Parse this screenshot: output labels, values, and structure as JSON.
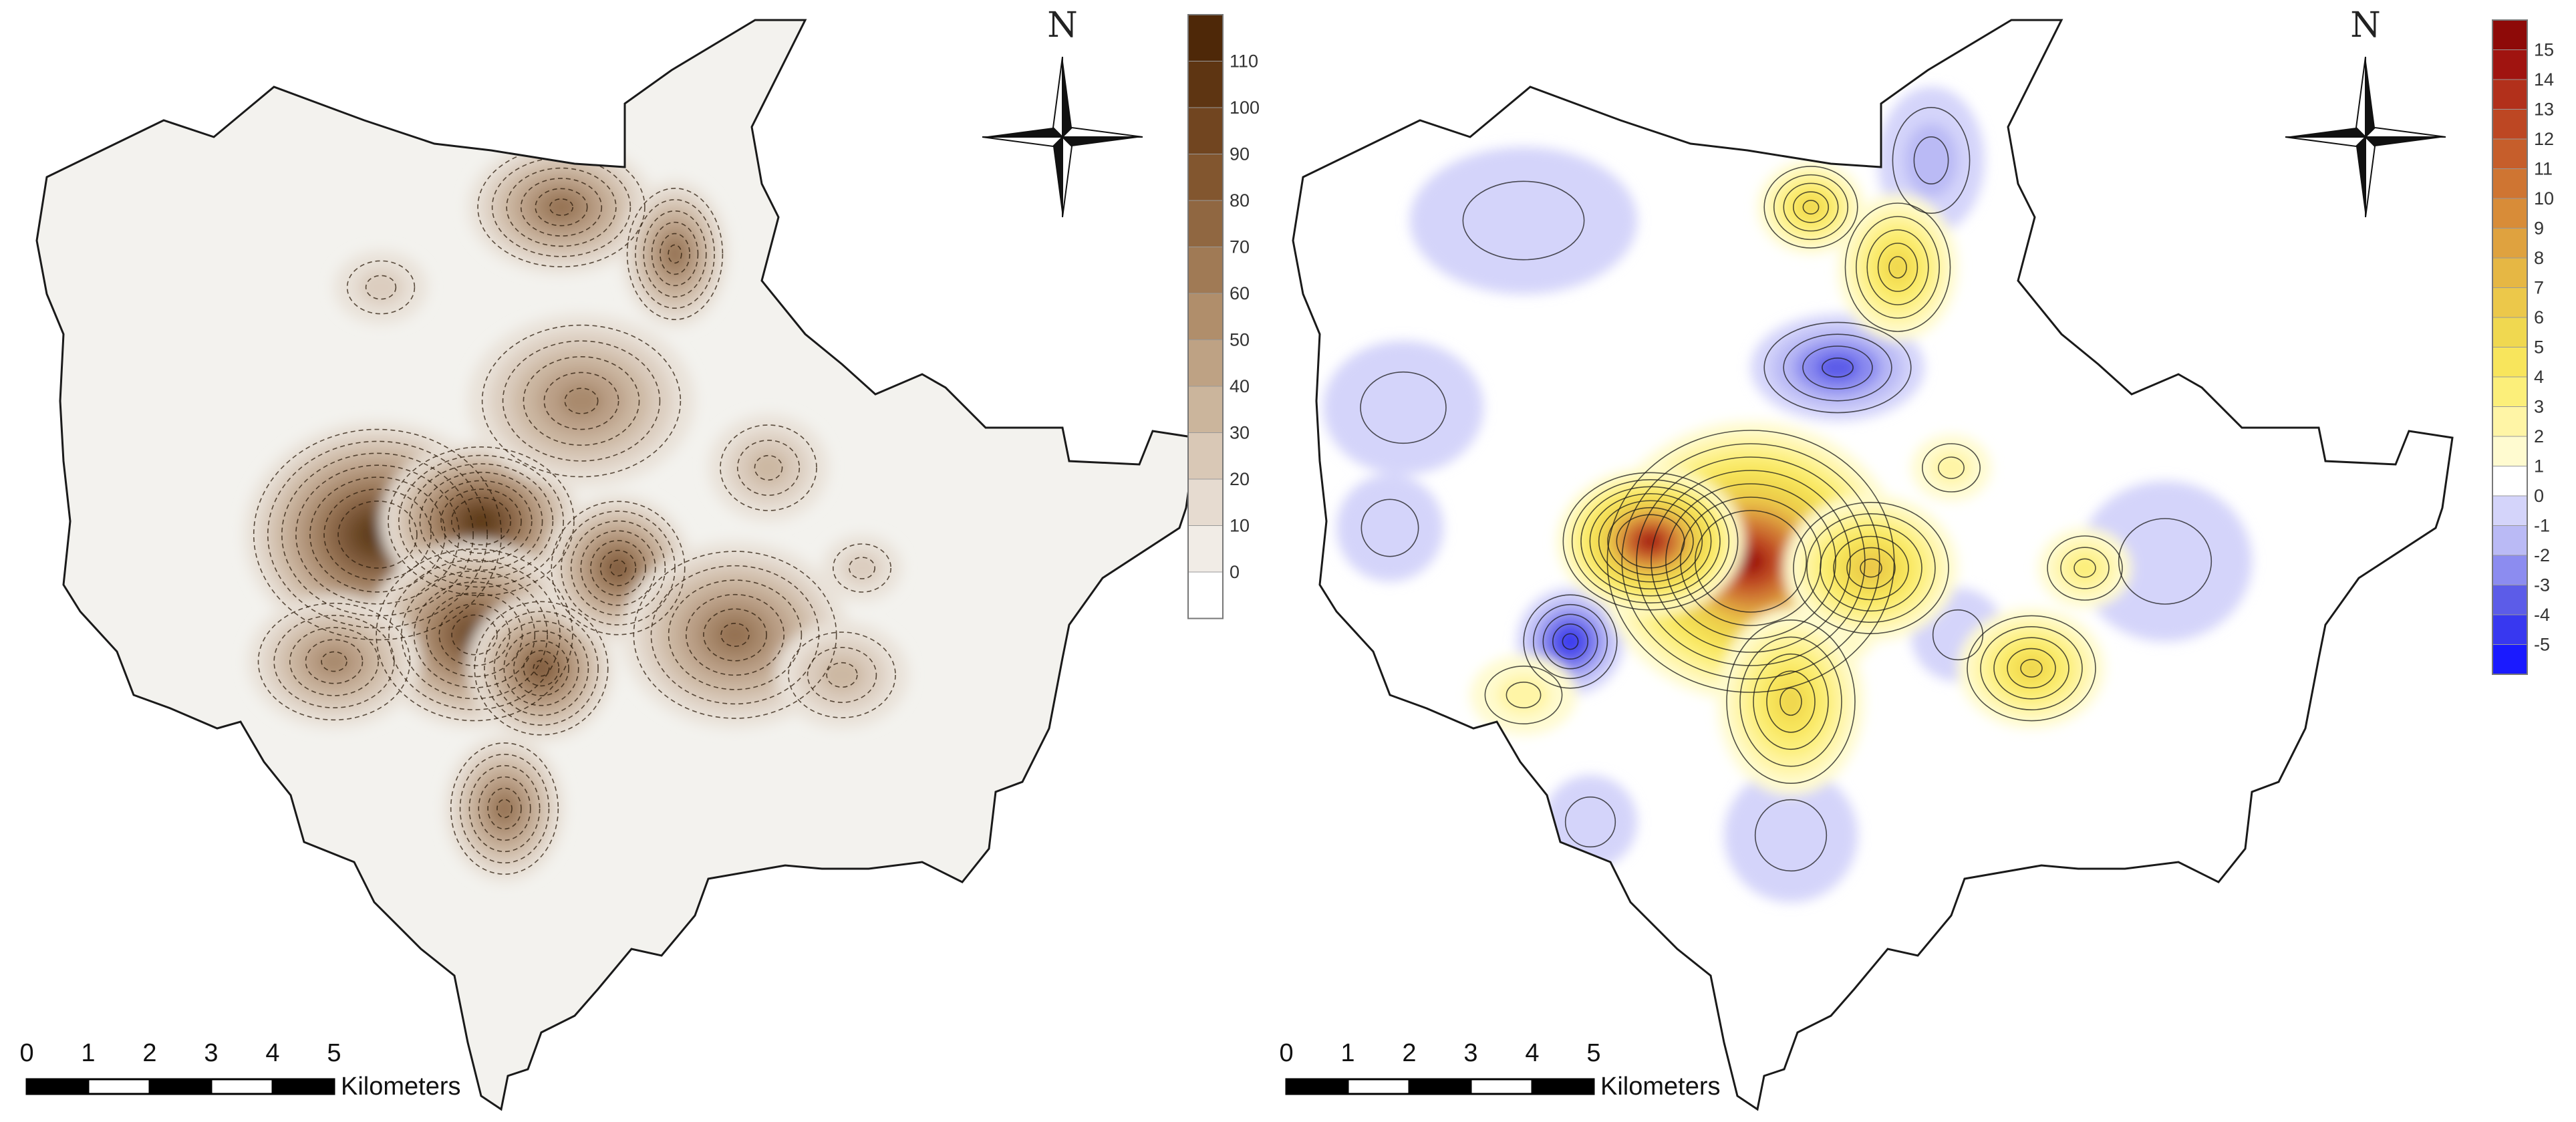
{
  "maps": [
    {
      "legend": {
        "labels": [
          "0",
          "10",
          "20",
          "30",
          "40",
          "50",
          "60",
          "70",
          "80",
          "90",
          "100",
          "110"
        ],
        "colors": [
          "#ffffff",
          "#f1ece6",
          "#e6dbd0",
          "#d9c8b6",
          "#cbb59c",
          "#bea284",
          "#b08e6b",
          "#a07a55",
          "#906741",
          "#82562f",
          "#714520",
          "#5e3512",
          "#4e2808"
        ]
      },
      "north_label": "N",
      "scale_bar": {
        "ticks": [
          "0",
          "1",
          "2",
          "3",
          "4",
          "5"
        ],
        "unit_label": "Kilometers"
      }
    },
    {
      "legend": {
        "labels": [
          "-5",
          "-4",
          "-3",
          "-2",
          "-1",
          "0",
          "1",
          "2",
          "3",
          "4",
          "5",
          "6",
          "7",
          "8",
          "9",
          "10",
          "11",
          "12",
          "13",
          "14",
          "15"
        ],
        "colors": [
          "#1a1aff",
          "#3838f0",
          "#5c5ce8",
          "#8c8cf0",
          "#babaf5",
          "#d4d4fa",
          "#ffffff",
          "#fffbd0",
          "#fff5a6",
          "#fcef7a",
          "#f8e55c",
          "#f0d850",
          "#ecc84a",
          "#e6b744",
          "#dfa23f",
          "#d88c38",
          "#cf7532",
          "#c65e2b",
          "#bd4723",
          "#b2301b",
          "#a01410",
          "#8e0a08"
        ]
      },
      "north_label": "N",
      "scale_bar": {
        "ticks": [
          "0",
          "1",
          "2",
          "3",
          "4",
          "5"
        ],
        "unit_label": "Kilometers"
      }
    }
  ]
}
